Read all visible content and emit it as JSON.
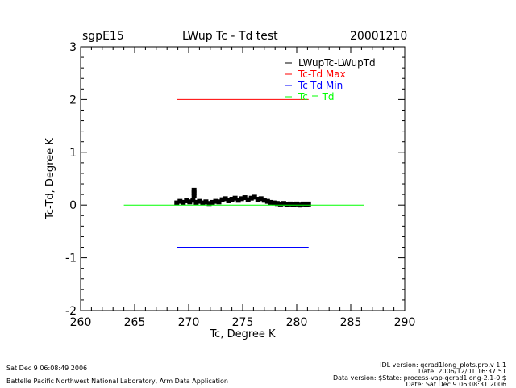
{
  "header": {
    "site": "sgpE15",
    "title": "LWup Tc - Td test",
    "date": "20001210"
  },
  "footer": {
    "left_date": "Sat Dec  9 06:08:49 2006",
    "left_org": "Battelle Pacific Northwest National Laboratory, Arm Data Application",
    "right_lines": [
      "IDL version: qcrad1long_plots.pro,v 1.1",
      "Date: 2006/12/01 16:37:51",
      "Data version: $State: process-vap-qcrad1long-2.1-0 $",
      "Date: Sat Dec  9 06:08:31 2006"
    ]
  },
  "chart_data": {
    "type": "scatter",
    "title": "LWup Tc - Td test",
    "xlabel": "Tc, Degree K",
    "ylabel": "Tc-Td, Degree K",
    "xlim": [
      260,
      290
    ],
    "ylim": [
      -2,
      3
    ],
    "x_ticks": [
      260,
      265,
      270,
      275,
      280,
      285,
      290
    ],
    "y_ticks": [
      -2,
      -1,
      0,
      1,
      2,
      3
    ],
    "legend_position": "top-right",
    "colors": {
      "points": "#000000",
      "max": "#ff0000",
      "min": "#0000ff",
      "equal": "#00ff00"
    },
    "series": [
      {
        "name": "LWupTc-LWupTd",
        "kind": "points",
        "x": [
          268.9,
          269.2,
          269.5,
          269.8,
          270.1,
          270.4,
          270.5,
          270.5,
          270.5,
          270.7,
          271.0,
          271.3,
          271.6,
          271.9,
          272.2,
          272.5,
          272.8,
          273.1,
          273.4,
          273.7,
          274.0,
          274.3,
          274.6,
          274.9,
          275.2,
          275.5,
          275.8,
          276.1,
          276.4,
          276.7,
          277.0,
          277.3,
          277.6,
          277.9,
          278.2,
          278.5,
          278.8,
          279.1,
          279.4,
          279.7,
          280.0,
          280.3,
          280.6,
          280.9,
          281.1
        ],
        "y": [
          0.04,
          0.07,
          0.05,
          0.08,
          0.06,
          0.09,
          0.18,
          0.23,
          0.28,
          0.05,
          0.07,
          0.04,
          0.06,
          0.03,
          0.05,
          0.07,
          0.06,
          0.1,
          0.12,
          0.08,
          0.11,
          0.13,
          0.09,
          0.12,
          0.14,
          0.1,
          0.13,
          0.15,
          0.11,
          0.12,
          0.09,
          0.07,
          0.05,
          0.04,
          0.03,
          0.02,
          0.03,
          0.01,
          0.02,
          0.01,
          0.02,
          0.0,
          0.02,
          0.01,
          0.02
        ]
      },
      {
        "name": "Tc-Td Max",
        "kind": "line",
        "x": [
          268.9,
          281.1
        ],
        "y": [
          2.0,
          2.0
        ]
      },
      {
        "name": "Tc-Td Min",
        "kind": "line",
        "x": [
          268.9,
          281.1
        ],
        "y": [
          -0.8,
          -0.8
        ]
      },
      {
        "name": "Tc = Td",
        "kind": "line",
        "x": [
          264.0,
          286.2
        ],
        "y": [
          0.0,
          0.0
        ]
      }
    ]
  }
}
